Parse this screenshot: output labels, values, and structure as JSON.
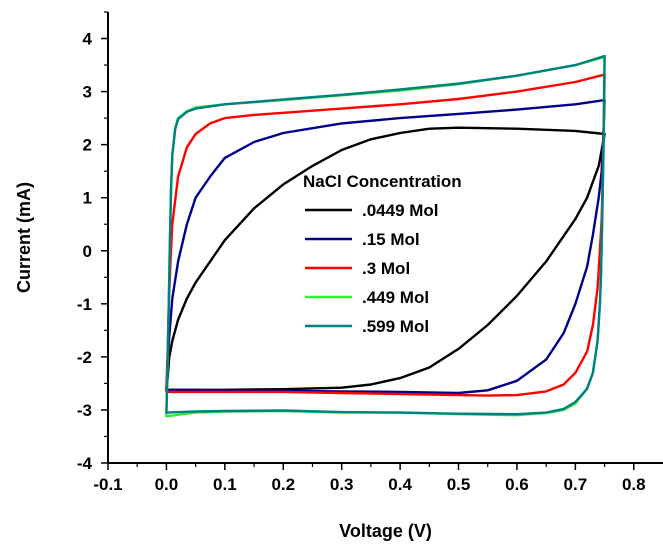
{
  "chart_data": {
    "type": "line",
    "xlabel": "Voltage (V)",
    "ylabel": "Current (mA)",
    "xlim": [
      -0.1,
      0.85
    ],
    "ylim": [
      -4,
      4.5
    ],
    "xticks": [
      -0.1,
      0.0,
      0.1,
      0.2,
      0.3,
      0.4,
      0.5,
      0.6,
      0.7,
      0.8
    ],
    "xtick_labels": [
      "-0.1",
      "0.0",
      "0.1",
      "0.2",
      "0.3",
      "0.4",
      "0.5",
      "0.6",
      "0.7",
      "0.8"
    ],
    "yticks": [
      -4,
      -3,
      -2,
      -1,
      0,
      1,
      2,
      3,
      4
    ],
    "ytick_labels": [
      "-4",
      "-3",
      "-2",
      "-1",
      "0",
      "1",
      "2",
      "3",
      "4"
    ],
    "grid": false,
    "legend": {
      "title": "NaCl Concentration",
      "placement": "center-right"
    },
    "series": [
      {
        "name": ".0449 Mol",
        "color": "#000000",
        "forward": [
          [
            0.0,
            -2.62
          ],
          [
            0.002,
            -2.4
          ],
          [
            0.005,
            -2.0
          ],
          [
            0.01,
            -1.7
          ],
          [
            0.02,
            -1.3
          ],
          [
            0.035,
            -0.9
          ],
          [
            0.05,
            -0.6
          ],
          [
            0.075,
            -0.2
          ],
          [
            0.1,
            0.2
          ],
          [
            0.15,
            0.8
          ],
          [
            0.2,
            1.25
          ],
          [
            0.25,
            1.6
          ],
          [
            0.3,
            1.9
          ],
          [
            0.35,
            2.1
          ],
          [
            0.4,
            2.22
          ],
          [
            0.45,
            2.3
          ],
          [
            0.5,
            2.32
          ],
          [
            0.55,
            2.31
          ],
          [
            0.6,
            2.3
          ],
          [
            0.65,
            2.28
          ],
          [
            0.7,
            2.26
          ],
          [
            0.75,
            2.2
          ]
        ],
        "reverse": [
          [
            0.75,
            2.2
          ],
          [
            0.745,
            1.9
          ],
          [
            0.74,
            1.6
          ],
          [
            0.72,
            1.0
          ],
          [
            0.7,
            0.6
          ],
          [
            0.65,
            -0.2
          ],
          [
            0.6,
            -0.85
          ],
          [
            0.55,
            -1.4
          ],
          [
            0.5,
            -1.85
          ],
          [
            0.45,
            -2.2
          ],
          [
            0.4,
            -2.4
          ],
          [
            0.35,
            -2.52
          ],
          [
            0.3,
            -2.58
          ],
          [
            0.2,
            -2.61
          ],
          [
            0.1,
            -2.62
          ],
          [
            0.0,
            -2.62
          ]
        ]
      },
      {
        "name": ".15 Mol",
        "color": "#00008B",
        "forward": [
          [
            0.0,
            -2.62
          ],
          [
            0.002,
            -2.2
          ],
          [
            0.005,
            -1.6
          ],
          [
            0.01,
            -0.9
          ],
          [
            0.02,
            -0.2
          ],
          [
            0.035,
            0.5
          ],
          [
            0.05,
            1.0
          ],
          [
            0.075,
            1.4
          ],
          [
            0.1,
            1.75
          ],
          [
            0.15,
            2.05
          ],
          [
            0.2,
            2.22
          ],
          [
            0.3,
            2.4
          ],
          [
            0.4,
            2.5
          ],
          [
            0.5,
            2.58
          ],
          [
            0.6,
            2.66
          ],
          [
            0.7,
            2.76
          ],
          [
            0.75,
            2.84
          ]
        ],
        "reverse": [
          [
            0.75,
            2.84
          ],
          [
            0.748,
            2.2
          ],
          [
            0.745,
            1.5
          ],
          [
            0.74,
            1.0
          ],
          [
            0.73,
            0.3
          ],
          [
            0.72,
            -0.3
          ],
          [
            0.7,
            -1.0
          ],
          [
            0.68,
            -1.55
          ],
          [
            0.65,
            -2.05
          ],
          [
            0.6,
            -2.45
          ],
          [
            0.55,
            -2.63
          ],
          [
            0.5,
            -2.68
          ],
          [
            0.4,
            -2.66
          ],
          [
            0.3,
            -2.65
          ],
          [
            0.2,
            -2.64
          ],
          [
            0.1,
            -2.63
          ],
          [
            0.0,
            -2.62
          ]
        ]
      },
      {
        "name": ".3 Mol",
        "color": "#FF0000",
        "forward": [
          [
            0.0,
            -2.62
          ],
          [
            0.002,
            -1.9
          ],
          [
            0.004,
            -1.0
          ],
          [
            0.007,
            -0.2
          ],
          [
            0.01,
            0.5
          ],
          [
            0.02,
            1.4
          ],
          [
            0.035,
            1.95
          ],
          [
            0.05,
            2.2
          ],
          [
            0.075,
            2.4
          ],
          [
            0.1,
            2.5
          ],
          [
            0.15,
            2.56
          ],
          [
            0.2,
            2.6
          ],
          [
            0.3,
            2.68
          ],
          [
            0.4,
            2.76
          ],
          [
            0.5,
            2.86
          ],
          [
            0.6,
            3.0
          ],
          [
            0.7,
            3.18
          ],
          [
            0.75,
            3.32
          ]
        ],
        "reverse": [
          [
            0.75,
            3.32
          ],
          [
            0.749,
            2.5
          ],
          [
            0.747,
            1.5
          ],
          [
            0.745,
            0.6
          ],
          [
            0.742,
            0.0
          ],
          [
            0.738,
            -0.7
          ],
          [
            0.73,
            -1.4
          ],
          [
            0.72,
            -1.9
          ],
          [
            0.7,
            -2.3
          ],
          [
            0.68,
            -2.52
          ],
          [
            0.65,
            -2.65
          ],
          [
            0.6,
            -2.72
          ],
          [
            0.55,
            -2.73
          ],
          [
            0.5,
            -2.72
          ],
          [
            0.4,
            -2.7
          ],
          [
            0.3,
            -2.68
          ],
          [
            0.2,
            -2.66
          ],
          [
            0.1,
            -2.66
          ],
          [
            0.0,
            -2.66
          ]
        ]
      },
      {
        "name": ".449 Mol",
        "color": "#33EE33",
        "forward": [
          [
            0.0,
            -3.12
          ],
          [
            0.002,
            -2.2
          ],
          [
            0.004,
            -1.0
          ],
          [
            0.006,
            0.2
          ],
          [
            0.008,
            1.2
          ],
          [
            0.01,
            1.8
          ],
          [
            0.015,
            2.3
          ],
          [
            0.02,
            2.5
          ],
          [
            0.035,
            2.63
          ],
          [
            0.05,
            2.7
          ],
          [
            0.1,
            2.76
          ],
          [
            0.2,
            2.84
          ],
          [
            0.3,
            2.93
          ],
          [
            0.4,
            3.02
          ],
          [
            0.5,
            3.14
          ],
          [
            0.6,
            3.3
          ],
          [
            0.7,
            3.5
          ],
          [
            0.75,
            3.65
          ]
        ],
        "reverse": [
          [
            0.75,
            3.65
          ],
          [
            0.749,
            2.8
          ],
          [
            0.748,
            1.8
          ],
          [
            0.746,
            0.6
          ],
          [
            0.744,
            -0.4
          ],
          [
            0.742,
            -1.0
          ],
          [
            0.738,
            -1.7
          ],
          [
            0.73,
            -2.3
          ],
          [
            0.72,
            -2.6
          ],
          [
            0.7,
            -2.88
          ],
          [
            0.68,
            -3.0
          ],
          [
            0.65,
            -3.06
          ],
          [
            0.6,
            -3.1
          ],
          [
            0.5,
            -3.08
          ],
          [
            0.4,
            -3.05
          ],
          [
            0.3,
            -3.05
          ],
          [
            0.2,
            -3.02
          ],
          [
            0.1,
            -3.03
          ],
          [
            0.05,
            -3.05
          ],
          [
            0.0,
            -3.12
          ]
        ]
      },
      {
        "name": ".599 Mol",
        "color": "#008080",
        "forward": [
          [
            0.0,
            -3.05
          ],
          [
            0.002,
            -2.2
          ],
          [
            0.004,
            -1.0
          ],
          [
            0.006,
            0.2
          ],
          [
            0.008,
            1.2
          ],
          [
            0.01,
            1.8
          ],
          [
            0.015,
            2.3
          ],
          [
            0.02,
            2.48
          ],
          [
            0.035,
            2.62
          ],
          [
            0.05,
            2.68
          ],
          [
            0.1,
            2.76
          ],
          [
            0.2,
            2.85
          ],
          [
            0.3,
            2.94
          ],
          [
            0.4,
            3.04
          ],
          [
            0.5,
            3.15
          ],
          [
            0.6,
            3.3
          ],
          [
            0.7,
            3.5
          ],
          [
            0.75,
            3.67
          ]
        ],
        "reverse": [
          [
            0.75,
            3.67
          ],
          [
            0.749,
            2.8
          ],
          [
            0.748,
            1.8
          ],
          [
            0.746,
            0.6
          ],
          [
            0.744,
            -0.4
          ],
          [
            0.742,
            -1.0
          ],
          [
            0.738,
            -1.7
          ],
          [
            0.73,
            -2.3
          ],
          [
            0.72,
            -2.6
          ],
          [
            0.7,
            -2.85
          ],
          [
            0.68,
            -2.98
          ],
          [
            0.65,
            -3.05
          ],
          [
            0.6,
            -3.08
          ],
          [
            0.5,
            -3.07
          ],
          [
            0.4,
            -3.05
          ],
          [
            0.3,
            -3.04
          ],
          [
            0.2,
            -3.01
          ],
          [
            0.1,
            -3.02
          ],
          [
            0.05,
            -3.03
          ],
          [
            0.0,
            -3.05
          ]
        ]
      }
    ]
  }
}
